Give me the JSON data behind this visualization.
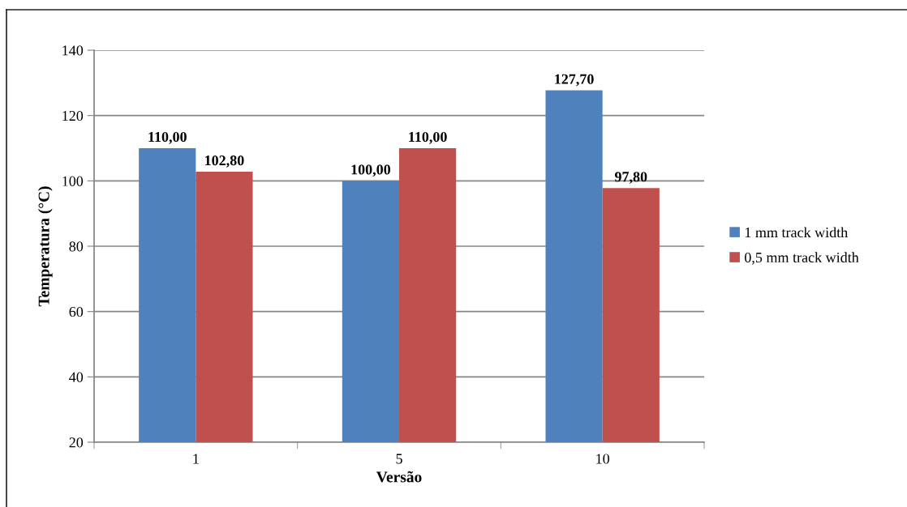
{
  "chart_data": {
    "type": "bar",
    "categories": [
      "1",
      "5",
      "10"
    ],
    "xlabel": "Versão",
    "ylabel": "Temperatura (°C)",
    "series": [
      {
        "name": "1 mm track width",
        "color": "#4f81bd",
        "values": [
          110,
          100,
          127.7
        ],
        "value_labels": [
          "110,00",
          "100,00",
          "127,70"
        ]
      },
      {
        "name": "0,5 mm track width",
        "color": "#c0504d",
        "values": [
          102.8,
          110,
          97.8
        ],
        "value_labels": [
          "102,80",
          "110,00",
          "97,80"
        ]
      }
    ],
    "ylim": [
      20,
      140
    ],
    "yticks": [
      20,
      40,
      60,
      80,
      100,
      120,
      140
    ],
    "grid": "y",
    "legend": "right"
  }
}
